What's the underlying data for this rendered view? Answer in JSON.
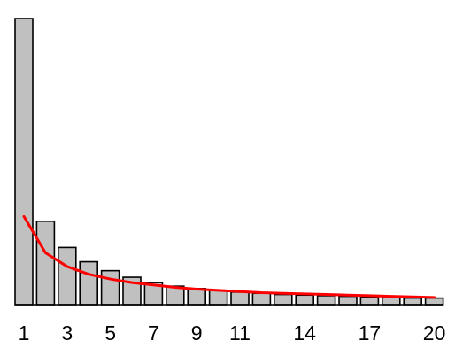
{
  "chart_data": {
    "type": "bar",
    "title": "",
    "xlabel": "",
    "ylabel": "",
    "categories": [
      "1",
      "2",
      "3",
      "4",
      "5",
      "6",
      "7",
      "8",
      "9",
      "10",
      "11",
      "12",
      "13",
      "14",
      "15",
      "16",
      "17",
      "18",
      "19",
      "20"
    ],
    "tick_labels": [
      "1",
      "3",
      "5",
      "7",
      "9",
      "11",
      "14",
      "17",
      "20"
    ],
    "series": [
      {
        "kind": "bar",
        "values": [
          0.48,
          0.14,
          0.096,
          0.072,
          0.057,
          0.046,
          0.037,
          0.031,
          0.027,
          0.024,
          0.021,
          0.019,
          0.017,
          0.016,
          0.015,
          0.014,
          0.013,
          0.012,
          0.011,
          0.011
        ]
      },
      {
        "kind": "line",
        "values": [
          0.148,
          0.087,
          0.064,
          0.051,
          0.043,
          0.037,
          0.033,
          0.029,
          0.026,
          0.024,
          0.022,
          0.02,
          0.019,
          0.018,
          0.017,
          0.016,
          0.015,
          0.014,
          0.013,
          0.012
        ]
      }
    ],
    "ylim": [
      0,
      0.48
    ],
    "grid": false,
    "legend": "none",
    "colors": {
      "bar_fill": "#c0c0c0",
      "bar_edge": "#000000",
      "line": "#ff0000"
    }
  }
}
